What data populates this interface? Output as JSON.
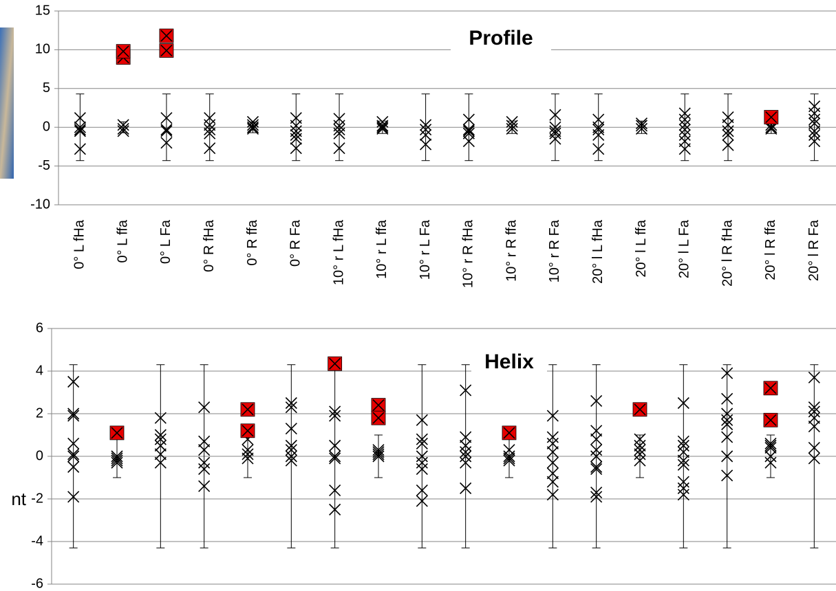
{
  "chart_data": [
    {
      "type": "tolerance-dot",
      "title": "Profile",
      "categories": [
        "0° L fHa",
        "0° L ffa",
        "0° L Fa",
        "0° R fHa",
        "0° R ffa",
        "0° R Fa",
        "10° r L fHa",
        "10° r L ffa",
        "10° r L Fa",
        "10° r R fHa",
        "10° r R ffa",
        "10° r R Fa",
        "20° l L fHa",
        "20° l L ffa",
        "20° l L Fa",
        "20° l R fHa",
        "20° l R ffa",
        "20° l R Fa"
      ],
      "tolerance": [
        4.3,
        0.7,
        4.3,
        4.3,
        0.7,
        4.3,
        4.3,
        0.8,
        4.3,
        4.3,
        0.8,
        4.3,
        4.3,
        0.8,
        4.3,
        4.3,
        0.8,
        4.3
      ],
      "series": [
        {
          "color": "#000000",
          "values": [
            [
              1.2,
              0,
              -0.3,
              -0.5,
              -2.8
            ],
            [
              0.3,
              -0.2,
              -0.5
            ],
            [
              1.2,
              -0.3,
              -0.5,
              -2
            ],
            [
              1.2,
              0.3,
              -0.3,
              -0.8,
              -2.7
            ],
            [
              0.7,
              0.3,
              0,
              -0.2
            ],
            [
              1.2,
              0.2,
              -0.5,
              -1,
              -1.5,
              -2.7
            ],
            [
              1.1,
              0.2,
              -0.3,
              -0.8,
              -2.7
            ],
            [
              0.7,
              0.2,
              0,
              -0.2
            ],
            [
              0.3,
              -0.3,
              -1,
              -2.2
            ],
            [
              1,
              -0.3,
              -0.5,
              -0.8,
              -1.8
            ],
            [
              0.7,
              0.2,
              -0.2
            ],
            [
              1.6,
              0,
              -0.5,
              -0.8,
              -1.5
            ],
            [
              1,
              0,
              -0.3,
              -1,
              -2.8
            ],
            [
              0.5,
              0.2,
              -0.2
            ],
            [
              1.8,
              1,
              0.3,
              -0.3,
              -1,
              -1.8,
              -2.8
            ],
            [
              1.3,
              0.3,
              -0.5,
              -1,
              -2.3
            ],
            [
              0.3,
              0,
              -0.2
            ],
            [
              2.7,
              1.8,
              1,
              0.5,
              -0.5,
              -1,
              -1.8
            ]
          ]
        },
        {
          "color": "#e60000",
          "values": [
            [],
            [
              9,
              9.8
            ],
            [
              11.8,
              9.9
            ],
            [],
            [],
            [],
            [],
            [],
            [],
            [],
            [],
            [],
            [],
            [],
            [],
            [],
            [
              1.3
            ],
            []
          ]
        }
      ],
      "ylim": [
        -10,
        15
      ],
      "yticks": [
        -10,
        -5,
        0,
        5,
        10,
        15
      ],
      "grid": true
    },
    {
      "type": "tolerance-dot",
      "title": "Helix",
      "ylabel": "nt",
      "tolerance": [
        4.3,
        1,
        4.3,
        4.3,
        1,
        4.3,
        4.3,
        1,
        4.3,
        4.3,
        1,
        4.3,
        4.3,
        1,
        4.3,
        4.3,
        1,
        4.3
      ],
      "series": [
        {
          "color": "#000000",
          "values": [
            [
              3.5,
              2,
              1.9,
              0.6,
              0.1,
              0,
              -0.5,
              -1.9
            ],
            [
              0,
              -0.1,
              -0.2,
              -0.3
            ],
            [
              1.8,
              1,
              0.8,
              0.5,
              0.1,
              -0.3
            ],
            [
              2.3,
              0.7,
              0.3,
              -0.3,
              -0.6,
              -1.4
            ],
            [
              0.8,
              0.3,
              0.1,
              -0.1
            ],
            [
              2.5,
              2.3,
              1.3,
              0.5,
              0.3,
              0,
              -0.2
            ],
            [
              2.1,
              1.9,
              0.5,
              0,
              -0.1,
              -1.6,
              -2.5
            ],
            [
              0.3,
              0.2,
              0.1,
              0
            ],
            [
              1.7,
              0.8,
              0.6,
              0,
              -0.3,
              -0.6,
              -1.6,
              -2.1
            ],
            [
              3.1,
              0.9,
              0.5,
              0.2,
              0,
              -0.3,
              -1.5
            ],
            [
              0.3,
              0,
              -0.1,
              -0.2
            ],
            [
              1.9,
              0.9,
              0.6,
              0.2,
              -0.3,
              -0.8,
              -1.2,
              -1.8
            ],
            [
              2.6,
              1.2,
              0.8,
              0.3,
              0,
              -0.5,
              -0.6,
              -1.7,
              -1.9
            ],
            [
              0.8,
              0.5,
              0.3,
              0.1,
              -0.2
            ],
            [
              2.5,
              0.7,
              0.5,
              0.2,
              -0.2,
              -0.4,
              -1.2,
              -1.5,
              -1.8
            ],
            [
              3.9,
              2.7,
              2,
              1.7,
              1.5,
              0.9,
              0,
              -0.9
            ],
            [
              0.6,
              0.5,
              0.4,
              0,
              -0.3
            ],
            [
              3.7,
              2.3,
              2.1,
              1.8,
              1.4,
              0.4,
              -0.1
            ]
          ]
        },
        {
          "color": "#e60000",
          "values": [
            [],
            [
              1.1
            ],
            [],
            [],
            [
              2.2,
              1.2
            ],
            [],
            [
              4.35
            ],
            [
              2.4,
              1.8
            ],
            [],
            [],
            [
              1.1
            ],
            [],
            [],
            [
              2.2
            ],
            [],
            [],
            [
              3.2,
              1.7
            ],
            []
          ]
        }
      ],
      "ylim": [
        -6,
        6
      ],
      "yticks": [
        -6,
        -4,
        -2,
        0,
        2,
        4,
        6
      ],
      "grid": true
    }
  ]
}
